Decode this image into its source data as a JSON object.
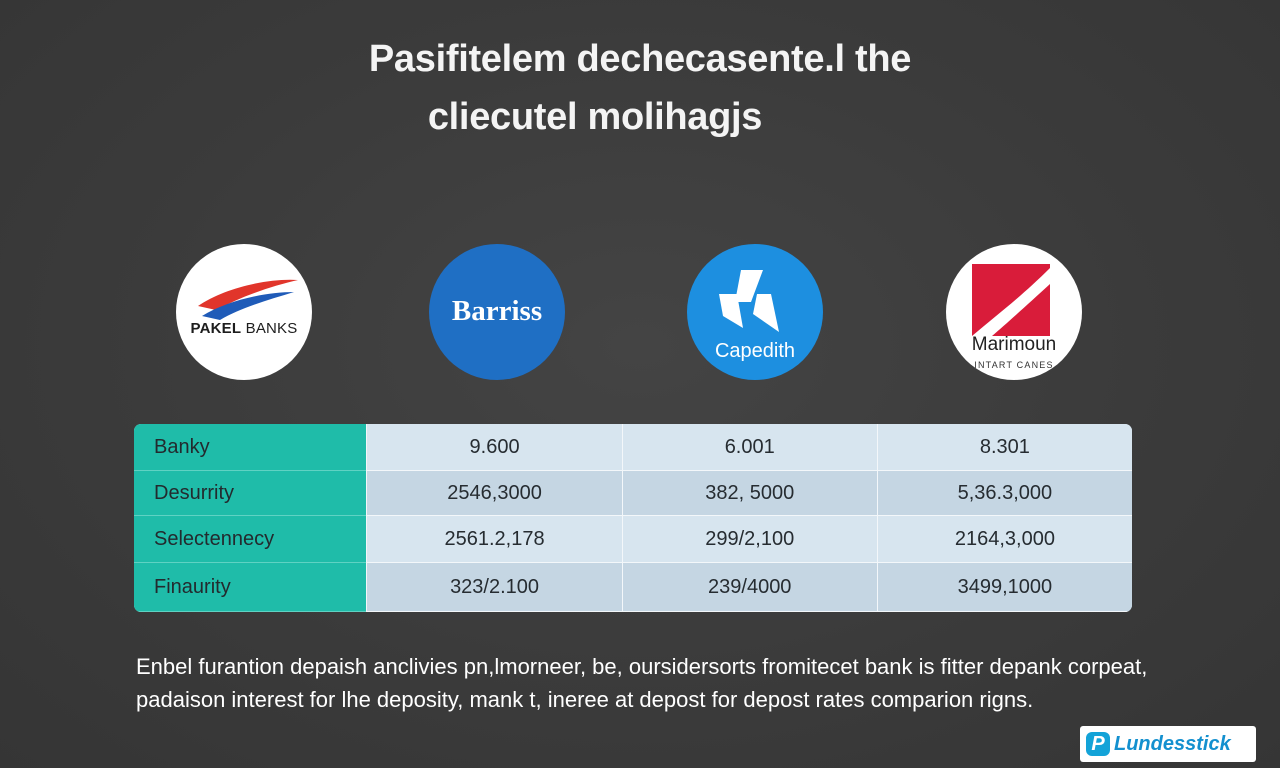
{
  "title": {
    "line1": "Pasifitelem dechecasente.l the",
    "line2": "cliecutel molihagjs"
  },
  "logos": [
    {
      "name": "PAKEL",
      "suffix": " BANKS",
      "colors": {
        "swoosh_red": "#e1352b",
        "swoosh_blue": "#1f5bb8"
      }
    },
    {
      "name": "Barriss",
      "colors": {
        "background": "#1f6fc4"
      }
    },
    {
      "name": "Capedith",
      "colors": {
        "background": "#1d8fe0"
      }
    },
    {
      "name": "Marimoun",
      "subtitle": "INTART CANES",
      "colors": {
        "mark": "#d91c3a"
      }
    }
  ],
  "table": {
    "rows": [
      {
        "label": "Banky",
        "values": [
          "9.600",
          "6.001",
          "8.301"
        ]
      },
      {
        "label": "Desurrity",
        "values": [
          "2546,3000",
          "382, 5000",
          "5,36.3,000"
        ]
      },
      {
        "label": "Selectennecy",
        "values": [
          "2561.2,178",
          "299/2,100",
          "2164,3,000"
        ]
      },
      {
        "label": "Finaurity",
        "values": [
          "323/2.100",
          "239/4000",
          "3499,1000"
        ]
      }
    ],
    "colors": {
      "label_column": "#1fbca9",
      "cells": "#d5e3ee"
    }
  },
  "caption": "Enbel furantion depaish anclivies pn,lmorneer, be, oursidersorts fromitecet bank is fitter depank corpeat, padaison interest for lhe deposity, mank t, ineree at depost for depost rates comparion rigns.",
  "brand": {
    "icon_letter": "P",
    "name": "Lundesstick",
    "icon": "p-badge-icon"
  }
}
